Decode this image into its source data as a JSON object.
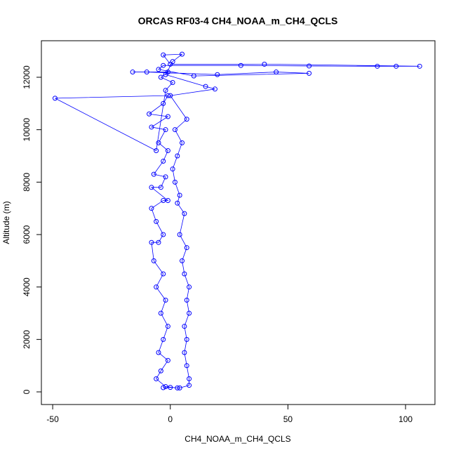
{
  "chart_data": {
    "type": "scatter",
    "title": "ORCAS RF03-4 CH4_NOAA_m_CH4_QCLS",
    "x_label": "CH4_NOAA_m_CH4_QCLS",
    "y_label": "Altitude (m)",
    "color": "#0000ff",
    "lines": true,
    "x": [
      3,
      -2,
      -6,
      -4,
      -1,
      -5,
      -3,
      -1,
      -4,
      -2,
      -6,
      -3,
      -7,
      -8,
      -5,
      -3,
      -6,
      -8,
      -3,
      -1,
      -8,
      -4,
      -2,
      -7,
      -3,
      -1,
      -5,
      -2,
      -8,
      -1,
      -9,
      -3,
      -1,
      -49,
      -6,
      -2,
      1,
      -4,
      -1,
      -16,
      -10,
      20,
      45,
      59,
      10,
      -5,
      -3,
      30,
      59,
      88,
      96,
      106,
      40,
      0,
      -3,
      5,
      1,
      -2,
      15,
      19,
      0,
      7,
      2,
      5,
      3,
      1,
      2,
      4,
      3,
      6,
      4,
      7,
      5,
      6,
      8,
      7,
      8,
      6,
      7,
      6,
      7,
      8,
      8,
      4,
      0,
      -3
    ],
    "y": [
      150,
      200,
      500,
      800,
      1200,
      1500,
      2000,
      2500,
      3000,
      3500,
      4000,
      4500,
      5000,
      5700,
      5700,
      6000,
      6500,
      7000,
      7300,
      7300,
      7800,
      7800,
      8200,
      8300,
      8800,
      9200,
      9500,
      10000,
      10100,
      10500,
      10600,
      11000,
      11300,
      11200,
      9200,
      11500,
      11800,
      12000,
      12200,
      12200,
      12200,
      12100,
      12200,
      12150,
      12050,
      12300,
      12450,
      12450,
      12430,
      12420,
      12420,
      12420,
      12500,
      12500,
      12850,
      12880,
      12600,
      12100,
      11650,
      11550,
      11300,
      10400,
      10000,
      9500,
      9000,
      8500,
      8000,
      7500,
      7200,
      6800,
      6000,
      5500,
      5000,
      4500,
      4000,
      3500,
      3000,
      2500,
      2000,
      1500,
      1000,
      500,
      250,
      150,
      170,
      160
    ],
    "xlim": [
      -54.8,
      112.5
    ],
    "ylim": [
      -482,
      13393
    ],
    "xticks": [
      -50,
      0,
      50,
      100
    ],
    "yticks": [
      0,
      2000,
      4000,
      6000,
      8000,
      10000,
      12000
    ]
  }
}
